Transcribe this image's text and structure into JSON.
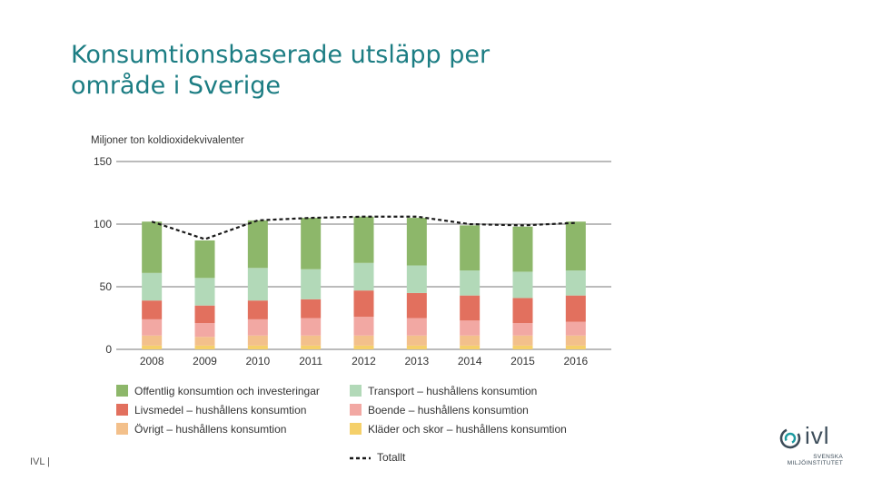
{
  "slide": {
    "title_line1": "Konsumtionsbaserade utsläpp per",
    "title_line2": "område i Sverige",
    "footer": "IVL |",
    "logo_text": "ivl",
    "logo_sub_line1": "SVENSKA",
    "logo_sub_line2": "MILJÖINSTITUTET"
  },
  "colors": {
    "title": "#1c7d83",
    "offentlig": "#8db76a",
    "transport": "#b2d9b8",
    "livsmedel": "#e2705e",
    "boende": "#f2a8a3",
    "ovrigt": "#f3c08b",
    "klader": "#f5d06a",
    "totalt": "#1a1a1a",
    "grid": "#777777",
    "text": "#333333"
  },
  "chart_data": {
    "type": "bar",
    "stacked": true,
    "ylabel": "Miljoner ton koldioxidekvivalenter",
    "ylim": [
      0,
      150
    ],
    "yticks": [
      0,
      50,
      100,
      150
    ],
    "categories": [
      "2008",
      "2009",
      "2010",
      "2011",
      "2012",
      "2013",
      "2014",
      "2015",
      "2016"
    ],
    "series": [
      {
        "name": "Kläder och skor – hushållens konsumtion",
        "key": "klader",
        "values": [
          3,
          3,
          3,
          3,
          3,
          3,
          3,
          3,
          3
        ]
      },
      {
        "name": "Övrigt – hushållens konsumtion",
        "key": "ovrigt",
        "values": [
          8,
          7,
          8,
          8,
          8,
          8,
          8,
          8,
          8
        ]
      },
      {
        "name": "Boende – hushållens konsumtion",
        "key": "boende",
        "values": [
          13,
          11,
          13,
          14,
          15,
          14,
          12,
          10,
          11
        ]
      },
      {
        "name": "Livsmedel – hushållens konsumtion",
        "key": "livsmedel",
        "values": [
          15,
          14,
          15,
          15,
          21,
          20,
          20,
          20,
          21
        ]
      },
      {
        "name": "Transport – hushållens konsumtion",
        "key": "transport",
        "values": [
          22,
          22,
          26,
          24,
          22,
          22,
          20,
          21,
          20
        ]
      },
      {
        "name": "Offentlig konsumtion och investeringar",
        "key": "offentlig",
        "values": [
          41,
          30,
          38,
          41,
          37,
          38,
          36,
          36,
          39
        ]
      }
    ],
    "legend_order": [
      "offentlig",
      "transport",
      "livsmedel",
      "boende",
      "ovrigt",
      "klader"
    ],
    "total": {
      "name": "Totallt",
      "values": [
        102,
        88,
        103,
        105,
        106,
        106,
        100,
        99,
        101
      ]
    }
  }
}
